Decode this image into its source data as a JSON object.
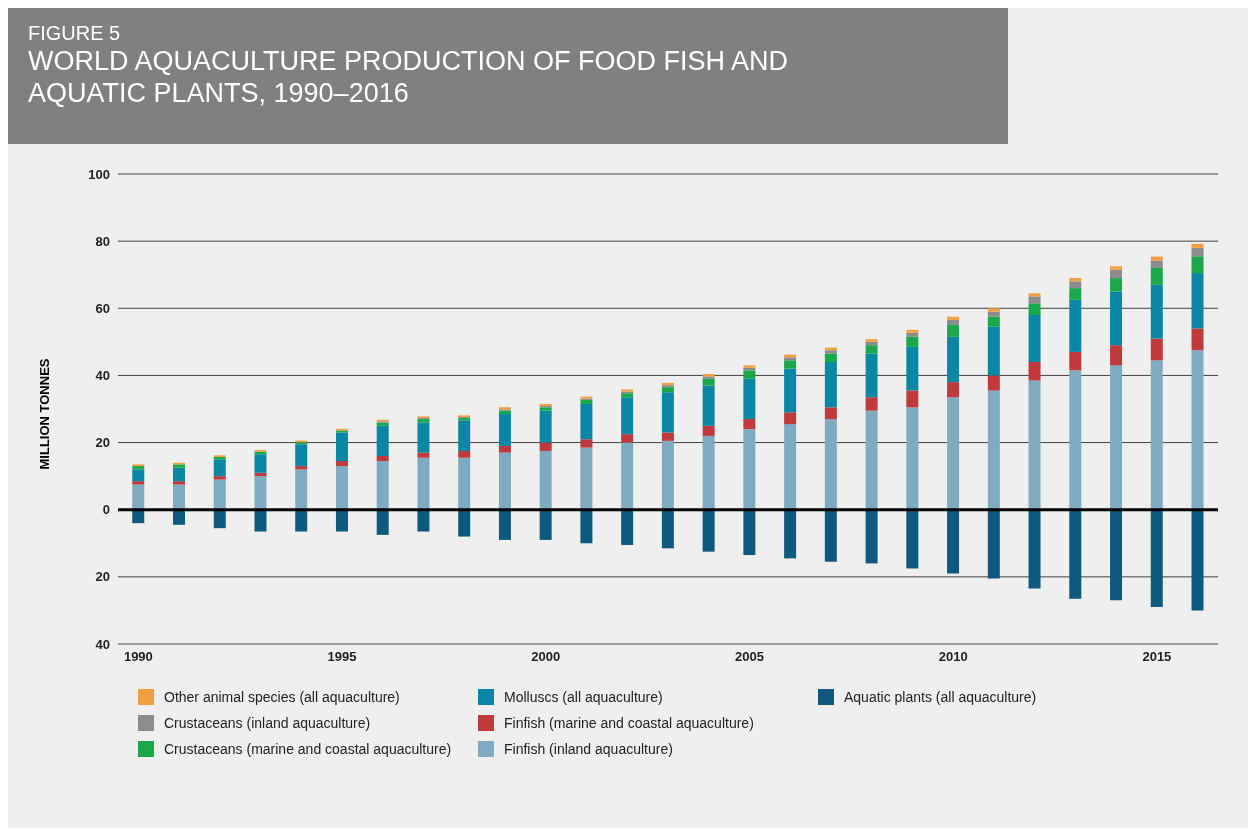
{
  "chart_data": {
    "type": "bar",
    "subtitle": "FIGURE 5",
    "title": "WORLD AQUACULTURE PRODUCTION OF FOOD FISH AND AQUATIC PLANTS, 1990–2016",
    "ylabel": "MILLION TONNES",
    "categories": [
      "1990",
      null,
      null,
      null,
      null,
      "1995",
      null,
      null,
      null,
      null,
      "2000",
      null,
      null,
      null,
      null,
      "2005",
      null,
      null,
      null,
      null,
      "2010",
      null,
      null,
      null,
      null,
      "2015",
      null
    ],
    "stacked": true,
    "series": [
      {
        "name": "Aquatic plants (all aquaculture)",
        "color": "#0e5a7e",
        "values": [
          -4,
          -4.5,
          -5.5,
          -6.5,
          -6.5,
          -6.5,
          -7.5,
          -6.5,
          -8,
          -9,
          -9,
          -10,
          -10.5,
          -11.5,
          -12.5,
          -13.5,
          -14.5,
          -15.5,
          -16,
          -17.5,
          -19,
          -20.5,
          -23.5,
          -26.5,
          -27,
          -29,
          -30
        ]
      },
      {
        "name": "Finfish (inland aquaculture)",
        "color": "#7fabc2",
        "values": [
          7.5,
          7.5,
          9,
          10,
          12,
          13,
          14.5,
          15.5,
          15.5,
          17,
          17.5,
          18.5,
          20,
          20.5,
          22,
          24,
          25.5,
          27,
          29.5,
          30.5,
          33.5,
          35.5,
          38.5,
          41.5,
          43,
          44.5,
          47.5
        ]
      },
      {
        "name": "Finfish (marine and coastal aquaculture)",
        "color": "#c0393b",
        "values": [
          1,
          1,
          1,
          1,
          1,
          1.5,
          1.5,
          1.5,
          2,
          2,
          2.5,
          2.5,
          2.5,
          2.5,
          3,
          3,
          3.5,
          3.5,
          4,
          5,
          4.5,
          4.5,
          5.5,
          5.5,
          6,
          6.5,
          6.5
        ]
      },
      {
        "name": "Molluscs (all aquaculture)",
        "color": "#0a87a5",
        "values": [
          3.5,
          4,
          5,
          5.5,
          6.5,
          8.5,
          9,
          9,
          9,
          9.5,
          9.5,
          10.5,
          11,
          12,
          12,
          12,
          13,
          13.5,
          13,
          13,
          13.5,
          14.5,
          14,
          15.5,
          16,
          16,
          16.5
        ]
      },
      {
        "name": "Crustaceans (marine and coastal aquaculture)",
        "color": "#1aa84a",
        "values": [
          1,
          1,
          0.7,
          0.8,
          0.6,
          0.6,
          1,
          1,
          0.8,
          1,
          1,
          1.2,
          1.2,
          1.5,
          2,
          2.5,
          2.5,
          2.5,
          2.5,
          3,
          3.5,
          3,
          3.5,
          3.5,
          4,
          5,
          5
        ]
      },
      {
        "name": "Crustaceans (inland aquaculture)",
        "color": "#8c8c8c",
        "values": [
          null,
          null,
          null,
          null,
          null,
          null,
          0.3,
          0.3,
          0.3,
          0.4,
          0.4,
          0.4,
          0.5,
          0.6,
          0.7,
          0.8,
          0.9,
          1,
          1,
          1.2,
          1.5,
          1.5,
          2,
          2,
          2.5,
          2.2,
          2.5
        ]
      },
      {
        "name": "Other animal species (all aquaculture)",
        "color": "#f0a040",
        "values": [
          0.5,
          0.5,
          0.5,
          0.5,
          0.5,
          0.5,
          0.5,
          0.5,
          0.5,
          0.6,
          0.6,
          0.6,
          0.6,
          0.7,
          0.7,
          0.7,
          0.8,
          0.8,
          0.8,
          0.9,
          1,
          1,
          1,
          1,
          1,
          1.2,
          1.2
        ]
      }
    ],
    "ylim": [
      -40,
      100
    ],
    "yticks": [
      {
        "value": -40,
        "label": "40"
      },
      {
        "value": -20,
        "label": "20"
      },
      0,
      20,
      40,
      60,
      80,
      100
    ],
    "grid": "y",
    "legend": "bottom"
  }
}
